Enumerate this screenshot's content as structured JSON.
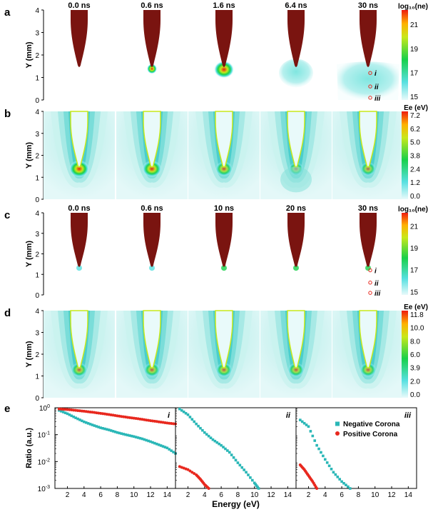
{
  "panels": {
    "a": {
      "letter": "a",
      "times": [
        "0.0 ns",
        "0.6 ns",
        "1.6 ns",
        "6.4 ns",
        "30 ns"
      ],
      "ylabel": "Y (mm)",
      "yticks": [
        "0",
        "1",
        "2",
        "3",
        "4"
      ],
      "colorbar_title": "log₁₀(ne)",
      "colorbar_ticks": [
        "21",
        "19",
        "17",
        "15"
      ],
      "markers": [
        "i",
        "ii",
        "iii"
      ]
    },
    "b": {
      "letter": "b",
      "ylabel": "Y (mm)",
      "yticks": [
        "0",
        "1",
        "2",
        "3",
        "4"
      ],
      "colorbar_title": "Ee (eV)",
      "colorbar_ticks": [
        "7.2",
        "6.2",
        "5.0",
        "3.8",
        "2.4",
        "1.2",
        "0.0"
      ]
    },
    "c": {
      "letter": "c",
      "times": [
        "0.0 ns",
        "0.6 ns",
        "10 ns",
        "20 ns",
        "30 ns"
      ],
      "ylabel": "Y (mm)",
      "yticks": [
        "0",
        "1",
        "2",
        "3",
        "4"
      ],
      "colorbar_title": "log₁₀(ne)",
      "colorbar_ticks": [
        "21",
        "19",
        "17",
        "15"
      ],
      "markers": [
        "i",
        "ii",
        "iii"
      ]
    },
    "d": {
      "letter": "d",
      "ylabel": "Y (mm)",
      "yticks": [
        "0",
        "1",
        "2",
        "3",
        "4"
      ],
      "colorbar_title": "Ee (eV)",
      "colorbar_ticks": [
        "11.8",
        "10.0",
        "8.0",
        "6.0",
        "3.9",
        "2.0",
        "0.0"
      ]
    },
    "e": {
      "letter": "e",
      "ylabel": "Ratio (a.u.)",
      "xlabel": "Energy (eV)",
      "ytick_exponents": [
        "0",
        "-1",
        "-2",
        "-3"
      ],
      "xticks": [
        "2",
        "4",
        "6",
        "8",
        "10",
        "12",
        "14"
      ],
      "subplot_labels": [
        "i",
        "ii",
        "iii"
      ],
      "legend": [
        "Negative Corona",
        "Positive Corona"
      ]
    }
  },
  "chart_data": {
    "type": "scatter",
    "xlabel": "Energy (eV)",
    "ylabel": "Ratio (a.u.)",
    "yscale": "log",
    "xlim": [
      0.5,
      15
    ],
    "ylim": [
      0.001,
      1
    ],
    "colors": {
      "negative": "#2ab7b7",
      "positive": "#e8281e"
    },
    "subplots": [
      {
        "label": "i",
        "series": [
          {
            "name": "Negative Corona",
            "x": [
              1,
              2,
              3,
              4,
              5,
              6,
              7,
              8,
              9,
              10,
              11,
              12,
              13,
              14,
              15
            ],
            "y": [
              0.8,
              0.6,
              0.42,
              0.3,
              0.23,
              0.18,
              0.15,
              0.12,
              0.1,
              0.085,
              0.07,
              0.055,
              0.042,
              0.032,
              0.02
            ]
          },
          {
            "name": "Positive Corona",
            "x": [
              1,
              2,
              3,
              4,
              5,
              6,
              7,
              8,
              9,
              10,
              11,
              12,
              13,
              14,
              15
            ],
            "y": [
              0.9,
              0.86,
              0.8,
              0.74,
              0.68,
              0.62,
              0.56,
              0.5,
              0.45,
              0.41,
              0.37,
              0.33,
              0.3,
              0.27,
              0.25
            ]
          }
        ]
      },
      {
        "label": "ii",
        "series": [
          {
            "name": "Negative Corona",
            "x": [
              1,
              2,
              3,
              4,
              5,
              6,
              7,
              8,
              9,
              10,
              10.5
            ],
            "y": [
              0.9,
              0.55,
              0.25,
              0.12,
              0.065,
              0.04,
              0.022,
              0.009,
              0.004,
              0.0016,
              0.001
            ]
          },
          {
            "name": "Positive Corona",
            "x": [
              1,
              2,
              3,
              3.5,
              4,
              4.5
            ],
            "y": [
              0.0065,
              0.005,
              0.0032,
              0.0022,
              0.0014,
              0.001
            ]
          }
        ]
      },
      {
        "label": "iii",
        "series": [
          {
            "name": "Negative Corona",
            "x": [
              1,
              2,
              3,
              4,
              5,
              6,
              7
            ],
            "y": [
              0.35,
              0.2,
              0.04,
              0.012,
              0.004,
              0.0018,
              0.001
            ]
          },
          {
            "name": "Positive Corona",
            "x": [
              1,
              1.5,
              2,
              2.5,
              3
            ],
            "y": [
              0.0075,
              0.005,
              0.003,
              0.0018,
              0.001
            ]
          }
        ]
      }
    ]
  }
}
